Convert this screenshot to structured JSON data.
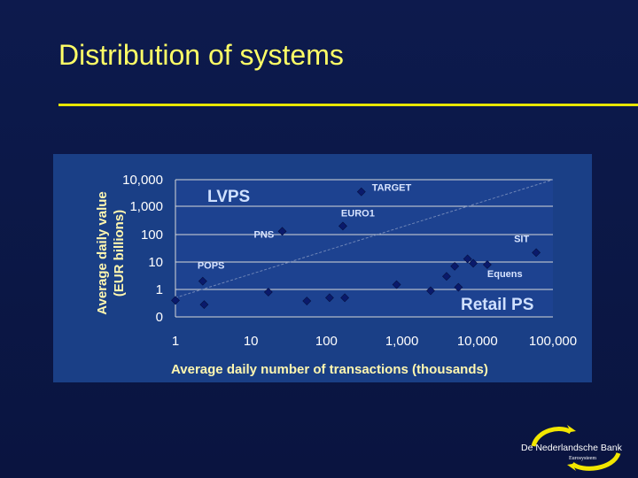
{
  "slide": {
    "title": "Distribution of systems"
  },
  "colors": {
    "accent": "#e8e600",
    "chart_background": "#1a3f86",
    "marker": "#0a1a6b"
  },
  "chart_data": {
    "type": "scatter",
    "xlabel": "Average daily number of transactions (thousands)",
    "ylabel": "Average daily value\n(EUR billions)",
    "x_scale": "log",
    "y_scale": "log",
    "xlim": [
      1,
      100000
    ],
    "x_ticks": [
      {
        "value": 1,
        "label": "1"
      },
      {
        "value": 10,
        "label": "10"
      },
      {
        "value": 100,
        "label": "100"
      },
      {
        "value": 1000,
        "label": "1,000"
      },
      {
        "value": 10000,
        "label": "10,000"
      },
      {
        "value": 100000,
        "label": "100,000"
      }
    ],
    "y_ticks": [
      {
        "value": 0.1,
        "label": "0"
      },
      {
        "value": 1,
        "label": "1"
      },
      {
        "value": 10,
        "label": "10"
      },
      {
        "value": 100,
        "label": "100"
      },
      {
        "value": 1000,
        "label": "1,000"
      },
      {
        "value": 10000,
        "label": "10,000"
      }
    ],
    "grid": true,
    "region_labels": {
      "upper": "LVPS",
      "lower": "Retail PS"
    },
    "trend_line": {
      "from": [
        1,
        0.5
      ],
      "to": [
        100000,
        10000
      ]
    },
    "points": [
      {
        "x": 1,
        "y": 0.4,
        "label": ""
      },
      {
        "x": 2.3,
        "y": 2,
        "label": "POPS"
      },
      {
        "x": 2.4,
        "y": 0.28,
        "label": ""
      },
      {
        "x": 17,
        "y": 0.8,
        "label": ""
      },
      {
        "x": 26,
        "y": 130,
        "label": "PNS"
      },
      {
        "x": 55,
        "y": 0.38,
        "label": ""
      },
      {
        "x": 110,
        "y": 0.5,
        "label": ""
      },
      {
        "x": 165,
        "y": 200,
        "label": "EURO1"
      },
      {
        "x": 175,
        "y": 0.5,
        "label": ""
      },
      {
        "x": 290,
        "y": 3500,
        "label": "TARGET"
      },
      {
        "x": 850,
        "y": 1.5,
        "label": ""
      },
      {
        "x": 2400,
        "y": 0.9,
        "label": ""
      },
      {
        "x": 3900,
        "y": 3,
        "label": ""
      },
      {
        "x": 5000,
        "y": 7,
        "label": ""
      },
      {
        "x": 5600,
        "y": 1.2,
        "label": ""
      },
      {
        "x": 7400,
        "y": 13,
        "label": ""
      },
      {
        "x": 8800,
        "y": 9,
        "label": ""
      },
      {
        "x": 13500,
        "y": 8,
        "label": "Equens"
      },
      {
        "x": 60000,
        "y": 22,
        "label": "SIT"
      }
    ]
  },
  "footer": {
    "logo_name": "De Nederlandsche Bank",
    "logo_sub": "Eurosysteem"
  }
}
